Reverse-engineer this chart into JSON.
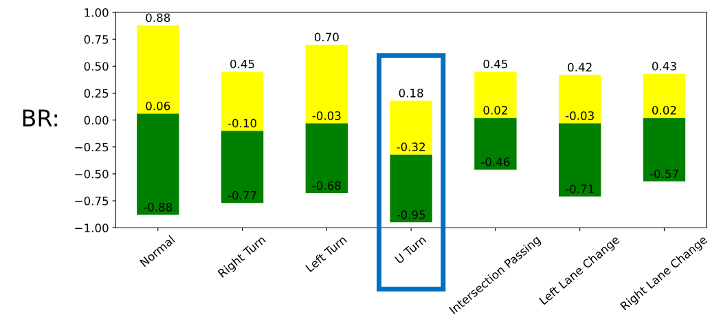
{
  "chart_data": {
    "type": "bar",
    "ylabel": "BR:",
    "categories": [
      "Normal",
      "Right Turn",
      "Left Turn",
      "U Turn",
      "Intersection Passing",
      "Left Lane Change",
      "Right Lane Change"
    ],
    "series": [
      {
        "color": "#008000",
        "base": [
          -0.88,
          -0.77,
          -0.68,
          -0.95,
          -0.46,
          -0.71,
          -0.57
        ],
        "values": [
          0.94,
          0.67,
          0.65,
          0.63,
          0.48,
          0.68,
          0.59
        ]
      },
      {
        "color": "#ffff00",
        "base": [
          0.06,
          -0.1,
          -0.03,
          -0.32,
          0.02,
          -0.03,
          0.02
        ],
        "values": [
          0.82,
          0.55,
          0.73,
          0.5,
          0.43,
          0.45,
          0.41
        ]
      }
    ],
    "ylim": [
      -1.0,
      1.0
    ],
    "yticks": [
      {
        "value": -1.0,
        "label": "−1.00"
      },
      {
        "value": -0.75,
        "label": "−0.75"
      },
      {
        "value": -0.5,
        "label": "−0.50"
      },
      {
        "value": -0.25,
        "label": "−0.25"
      },
      {
        "value": 0.0,
        "label": "0.00"
      },
      {
        "value": 0.25,
        "label": "0.25"
      },
      {
        "value": 0.5,
        "label": "0.50"
      },
      {
        "value": 0.75,
        "label": "0.75"
      },
      {
        "value": 1.0,
        "label": "1.00"
      }
    ],
    "grid": false,
    "legend": false,
    "annotations": [
      {
        "text": "0.88",
        "x": "Normal",
        "y": 0.88
      },
      {
        "text": "0.06",
        "x": "Normal",
        "y": 0.06
      },
      {
        "text": "-0.88",
        "x": "Normal",
        "y": -0.88
      },
      {
        "text": "0.45",
        "x": "Right Turn",
        "y": 0.45
      },
      {
        "text": "-0.10",
        "x": "Right Turn",
        "y": -0.1
      },
      {
        "text": "-0.77",
        "x": "Right Turn",
        "y": -0.77
      },
      {
        "text": "0.70",
        "x": "Left Turn",
        "y": 0.7
      },
      {
        "text": "-0.03",
        "x": "Left Turn",
        "y": -0.03
      },
      {
        "text": "-0.68",
        "x": "Left Turn",
        "y": -0.68
      },
      {
        "text": "0.18",
        "x": "U Turn",
        "y": 0.18
      },
      {
        "text": "-0.32",
        "x": "U Turn",
        "y": -0.32
      },
      {
        "text": "-0.95",
        "x": "U Turn",
        "y": -0.95
      },
      {
        "text": "0.45",
        "x": "Intersection Passing",
        "y": 0.45
      },
      {
        "text": "0.02",
        "x": "Intersection Passing",
        "y": 0.02
      },
      {
        "text": "-0.46",
        "x": "Intersection Passing",
        "y": -0.46
      },
      {
        "text": "0.42",
        "x": "Left Lane Change",
        "y": 0.42
      },
      {
        "text": "-0.03",
        "x": "Left Lane Change",
        "y": -0.03
      },
      {
        "text": "-0.71",
        "x": "Left Lane Change",
        "y": -0.71
      },
      {
        "text": "0.43",
        "x": "Right Lane Change",
        "y": 0.43
      },
      {
        "text": "0.02",
        "x": "Right Lane Change",
        "y": 0.02
      },
      {
        "text": "-0.57",
        "x": "Right Lane Change",
        "y": -0.57
      }
    ]
  }
}
